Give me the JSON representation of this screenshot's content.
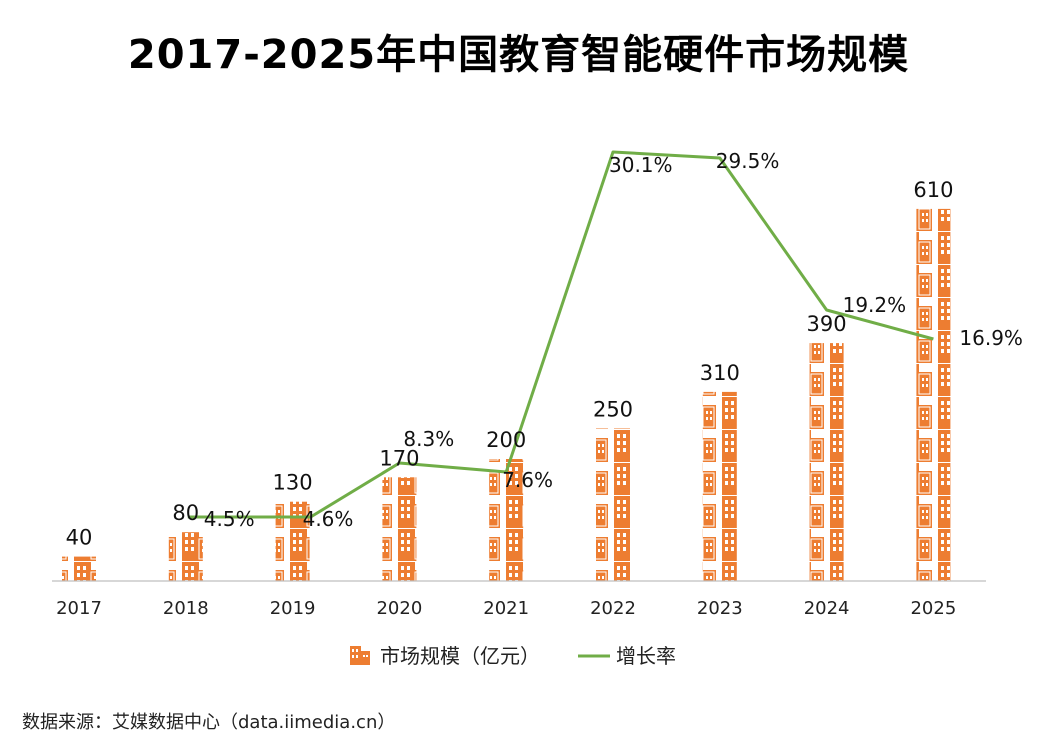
{
  "source": "数据来源：艾媒数据中心（data.iimedia.cn）",
  "chart_data": {
    "type": "bar",
    "title": "2017-2025年中国教育智能硬件市场规模",
    "categories": [
      "2017",
      "2018",
      "2019",
      "2020",
      "2021",
      "2022",
      "2023",
      "2024",
      "2025"
    ],
    "series": [
      {
        "name": "市场规模（亿元）",
        "type": "bar",
        "values": [
          40,
          80,
          130,
          170,
          200,
          250,
          310,
          390,
          610
        ],
        "labels": [
          "40",
          "80",
          "130",
          "170",
          "200",
          "250",
          "310",
          "390",
          "610"
        ]
      },
      {
        "name": "增长率",
        "type": "line",
        "values": [
          null,
          4.5,
          4.6,
          8.3,
          7.6,
          30.1,
          29.5,
          19.2,
          16.9
        ],
        "labels": [
          "",
          "4.5%",
          "4.6%",
          "8.3%",
          "7.6%",
          "30.1%",
          "29.5%",
          "19.2%",
          "16.9%"
        ]
      }
    ],
    "legend": "bottom-center",
    "grid": false,
    "colors": {
      "bar": "#ED7D31",
      "line": "#70AD47",
      "axis": "#BFBFBF"
    }
  }
}
